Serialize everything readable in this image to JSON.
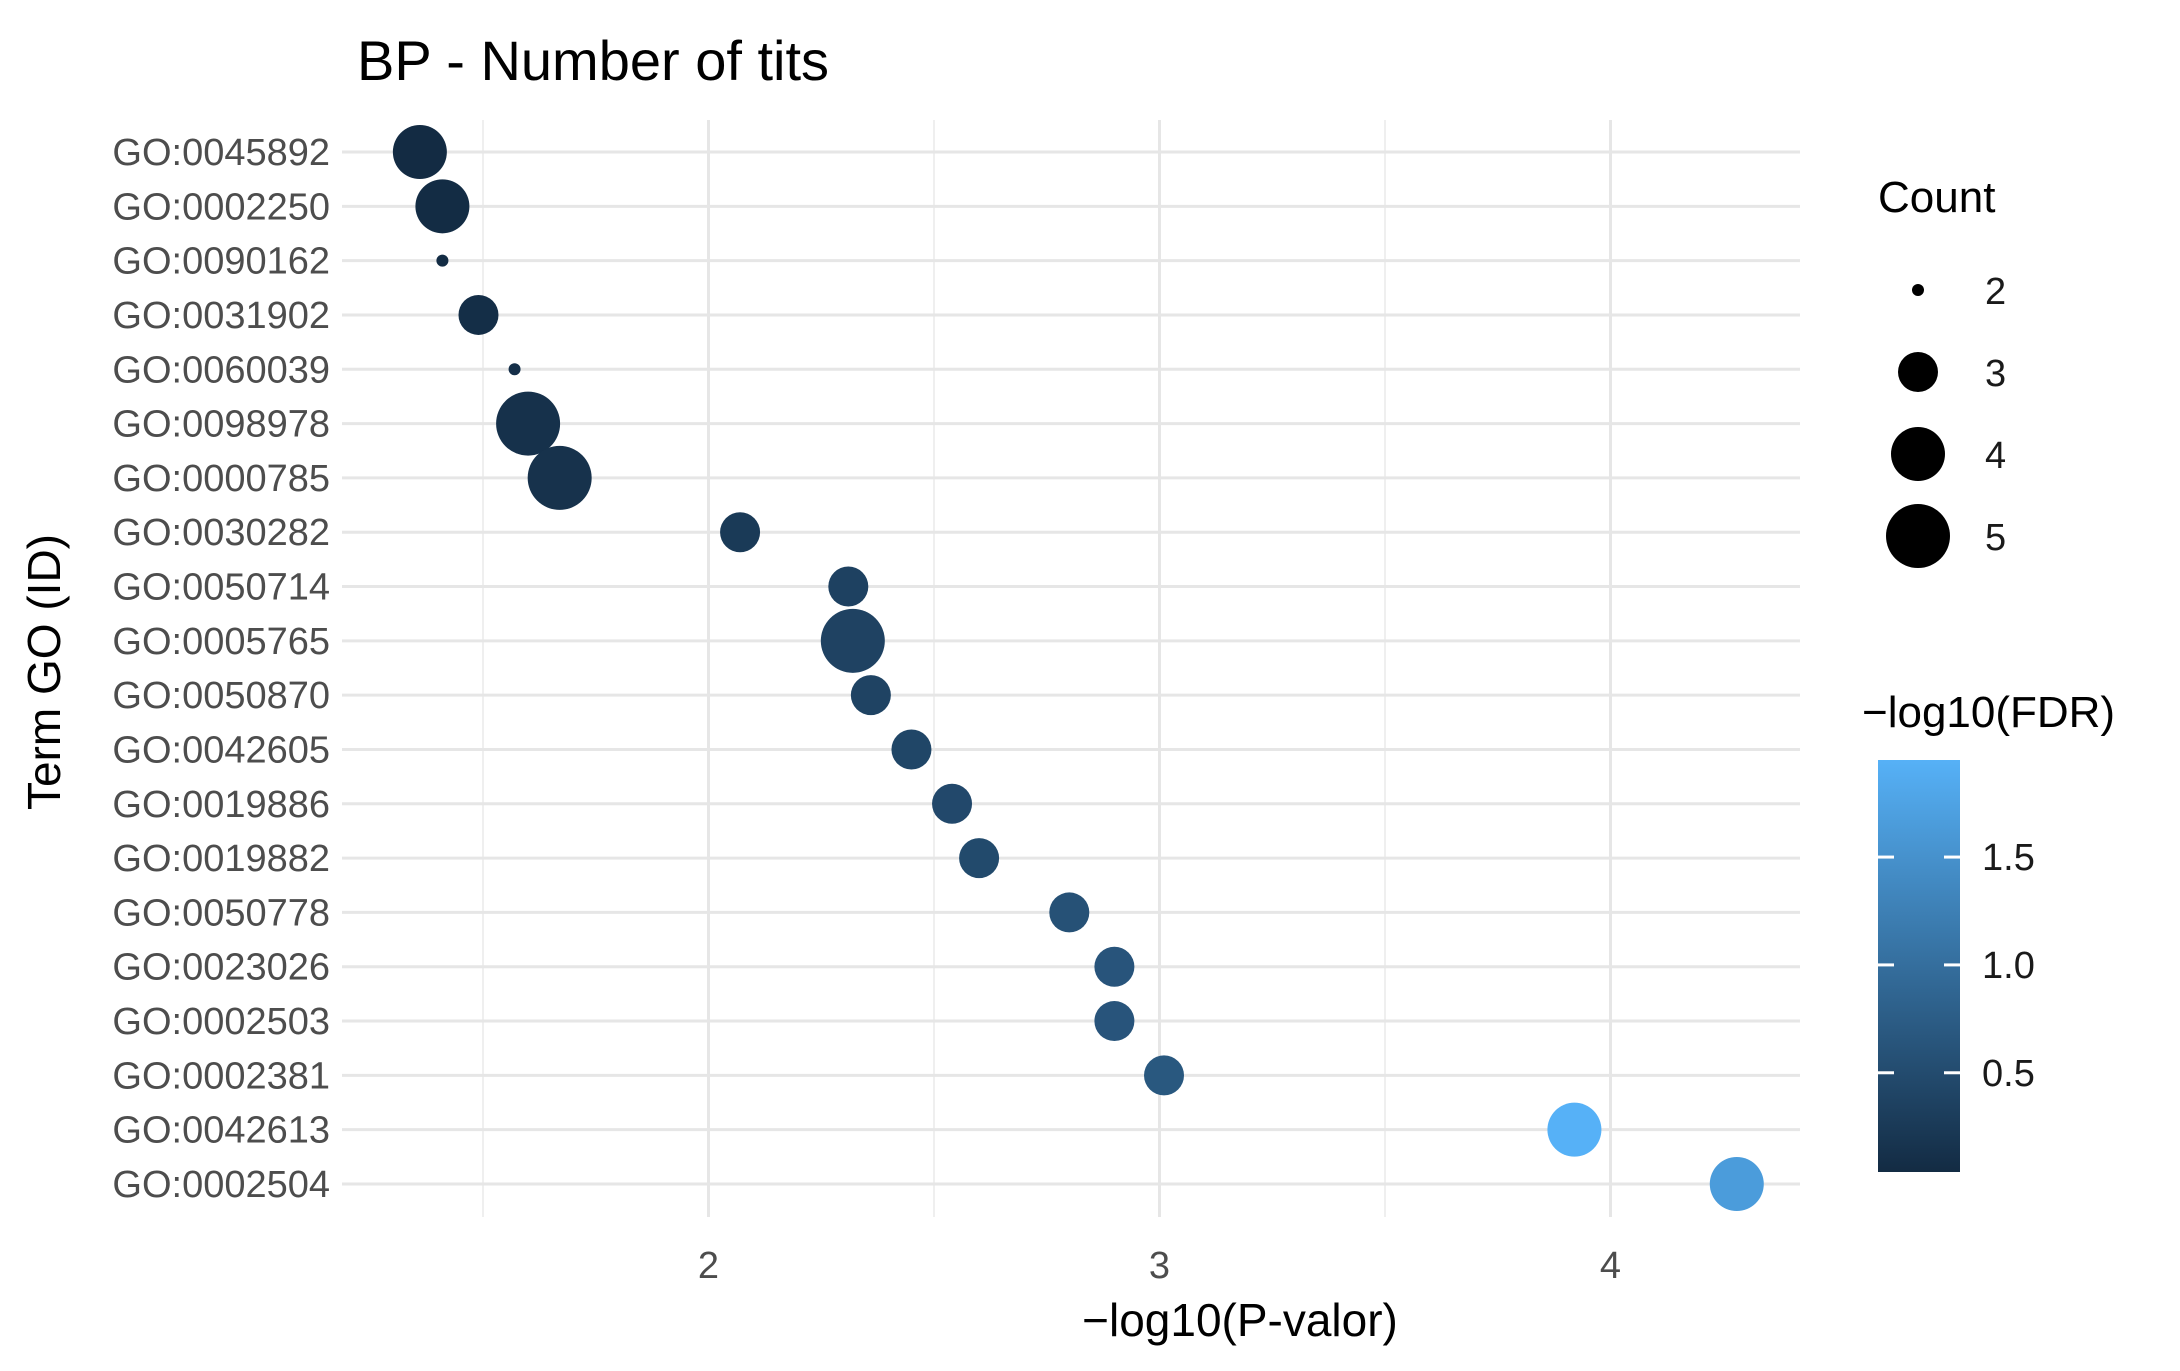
{
  "chart_data": {
    "type": "scatter",
    "title": "BP - Number of tits",
    "xlabel": "−log10(P-valor)",
    "ylabel": "Term GO (ID)",
    "xlim": [
      1.25,
      4.45
    ],
    "x_ticks": [
      "2",
      "3",
      "4"
    ],
    "grid": true,
    "categories": [
      "GO:0045892",
      "GO:0002250",
      "GO:0090162",
      "GO:0031902",
      "GO:0060039",
      "GO:0098978",
      "GO:0000785",
      "GO:0030282",
      "GO:0050714",
      "GO:0005765",
      "GO:0050870",
      "GO:0042605",
      "GO:0019886",
      "GO:0019882",
      "GO:0050778",
      "GO:0023026",
      "GO:0002503",
      "GO:0002381",
      "GO:0042613",
      "GO:0002504"
    ],
    "points": [
      {
        "term": "GO:0045892",
        "x": 1.36,
        "count": 4,
        "fdr": 0.04
      },
      {
        "term": "GO:0002250",
        "x": 1.41,
        "count": 4,
        "fdr": 0.05
      },
      {
        "term": "GO:0090162",
        "x": 1.41,
        "count": 2,
        "fdr": 0.05
      },
      {
        "term": "GO:0031902",
        "x": 1.49,
        "count": 3,
        "fdr": 0.08
      },
      {
        "term": "GO:0060039",
        "x": 1.57,
        "count": 2,
        "fdr": 0.1
      },
      {
        "term": "GO:0098978",
        "x": 1.6,
        "count": 5,
        "fdr": 0.12
      },
      {
        "term": "GO:0000785",
        "x": 1.67,
        "count": 5,
        "fdr": 0.14
      },
      {
        "term": "GO:0030282",
        "x": 2.07,
        "count": 3,
        "fdr": 0.25
      },
      {
        "term": "GO:0050714",
        "x": 2.31,
        "count": 3,
        "fdr": 0.36
      },
      {
        "term": "GO:0005765",
        "x": 2.32,
        "count": 5,
        "fdr": 0.37
      },
      {
        "term": "GO:0050870",
        "x": 2.36,
        "count": 3,
        "fdr": 0.38
      },
      {
        "term": "GO:0042605",
        "x": 2.45,
        "count": 3,
        "fdr": 0.42
      },
      {
        "term": "GO:0019886",
        "x": 2.54,
        "count": 3,
        "fdr": 0.46
      },
      {
        "term": "GO:0019882",
        "x": 2.6,
        "count": 3,
        "fdr": 0.48
      },
      {
        "term": "GO:0050778",
        "x": 2.8,
        "count": 3,
        "fdr": 0.58
      },
      {
        "term": "GO:0023026",
        "x": 2.9,
        "count": 3,
        "fdr": 0.63
      },
      {
        "term": "GO:0002503",
        "x": 2.9,
        "count": 3,
        "fdr": 0.63
      },
      {
        "term": "GO:0002381",
        "x": 3.01,
        "count": 3,
        "fdr": 0.68
      },
      {
        "term": "GO:0042613",
        "x": 3.92,
        "count": 4,
        "fdr": 1.95
      },
      {
        "term": "GO:0002504",
        "x": 4.28,
        "count": 4,
        "fdr": 1.65
      }
    ],
    "size_legend": {
      "title": "Count",
      "values": [
        2,
        3,
        4,
        5
      ],
      "labels": [
        "2",
        "3",
        "4",
        "5"
      ]
    },
    "color_legend": {
      "title": "−log10(FDR)",
      "range": [
        0.04,
        1.95
      ],
      "ticks": [
        0.5,
        1.0,
        1.5
      ],
      "tick_labels": [
        "0.5",
        "1.0",
        "1.5"
      ],
      "low_color": "#132b43",
      "high_color": "#56b1f7"
    },
    "legend_position": "right"
  }
}
